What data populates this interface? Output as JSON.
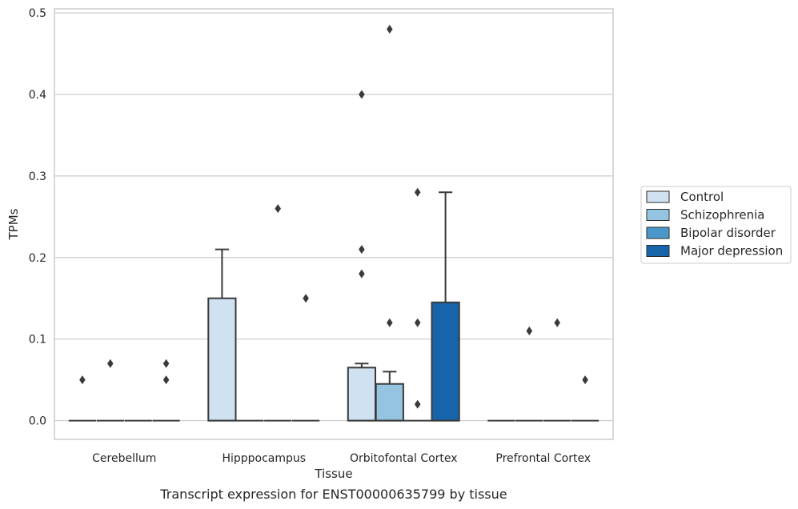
{
  "chart_data": {
    "type": "box",
    "title": "",
    "caption": "Transcript expression for ENST00000635799 by tissue",
    "xlabel": "Tissue",
    "ylabel": "TPMs",
    "ylim": [
      -0.023,
      0.505
    ],
    "yticks": [
      "0.0",
      "0.1",
      "0.2",
      "0.3",
      "0.4",
      "0.5"
    ],
    "ytick_values": [
      0.0,
      0.1,
      0.2,
      0.3,
      0.4,
      0.5
    ],
    "grid": true,
    "legend_position": "right",
    "categories": [
      "Cerebellum",
      "Hipppocampus",
      "Orbitofontal Cortex",
      "Prefrontal Cortex"
    ],
    "series": [
      {
        "name": "Control",
        "color": "#d0e1f2",
        "boxes": [
          {
            "q1": 0,
            "median": 0,
            "q3": 0,
            "whisker_low": 0,
            "whisker_high": 0,
            "outliers": [
              0.05
            ]
          },
          {
            "q1": 0,
            "median": 0,
            "q3": 0.15,
            "whisker_low": 0,
            "whisker_high": 0.21,
            "outliers": []
          },
          {
            "q1": 0,
            "median": 0,
            "q3": 0.065,
            "whisker_low": 0,
            "whisker_high": 0.07,
            "outliers": [
              0.21,
              0.18,
              0.4
            ]
          },
          {
            "q1": 0,
            "median": 0,
            "q3": 0,
            "whisker_low": 0,
            "whisker_high": 0,
            "outliers": []
          }
        ]
      },
      {
        "name": "Schizophrenia",
        "color": "#94c4df",
        "boxes": [
          {
            "q1": 0,
            "median": 0,
            "q3": 0,
            "whisker_low": 0,
            "whisker_high": 0,
            "outliers": [
              0.07
            ]
          },
          {
            "q1": 0,
            "median": 0,
            "q3": 0,
            "whisker_low": 0,
            "whisker_high": 0,
            "outliers": []
          },
          {
            "q1": 0,
            "median": 0,
            "q3": 0.045,
            "whisker_low": 0,
            "whisker_high": 0.06,
            "outliers": [
              0.48,
              0.12
            ]
          },
          {
            "q1": 0,
            "median": 0,
            "q3": 0,
            "whisker_low": 0,
            "whisker_high": 0,
            "outliers": [
              0.11
            ]
          }
        ]
      },
      {
        "name": "Bipolar disorder",
        "color": "#4a98c9",
        "boxes": [
          {
            "q1": 0,
            "median": 0,
            "q3": 0,
            "whisker_low": 0,
            "whisker_high": 0,
            "outliers": []
          },
          {
            "q1": 0,
            "median": 0,
            "q3": 0,
            "whisker_low": 0,
            "whisker_high": 0,
            "outliers": [
              0.26
            ]
          },
          {
            "q1": 0,
            "median": 0,
            "q3": 0,
            "whisker_low": 0,
            "whisker_high": 0,
            "outliers": [
              0.28,
              0.12,
              0.02
            ]
          },
          {
            "q1": 0,
            "median": 0,
            "q3": 0,
            "whisker_low": 0,
            "whisker_high": 0,
            "outliers": [
              0.12
            ]
          }
        ]
      },
      {
        "name": "Major depression",
        "color": "#1764ab",
        "boxes": [
          {
            "q1": 0,
            "median": 0,
            "q3": 0,
            "whisker_low": 0,
            "whisker_high": 0,
            "outliers": [
              0.07,
              0.05
            ]
          },
          {
            "q1": 0,
            "median": 0,
            "q3": 0,
            "whisker_low": 0,
            "whisker_high": 0,
            "outliers": [
              0.15
            ]
          },
          {
            "q1": 0,
            "median": 0,
            "q3": 0.145,
            "whisker_low": 0,
            "whisker_high": 0.28,
            "outliers": []
          },
          {
            "q1": 0,
            "median": 0,
            "q3": 0,
            "whisker_low": 0,
            "whisker_high": 0,
            "outliers": [
              0.05
            ]
          }
        ]
      }
    ]
  },
  "colors": {
    "grid": "#cccccc",
    "frame": "#cccccc",
    "box_edge": "#3a3a3a",
    "outlier": "#3a3a3a"
  }
}
